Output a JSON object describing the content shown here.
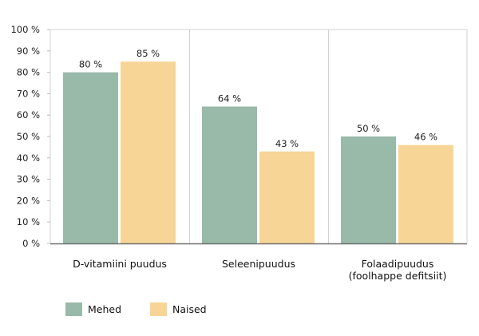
{
  "chart_data": {
    "type": "bar",
    "categories": [
      [
        "D-vitamiini puudus"
      ],
      [
        "Seleenipuudus"
      ],
      [
        "Folaadipuudus",
        "(foolhappe defitsiit)"
      ]
    ],
    "series": [
      {
        "name": "Mehed",
        "values": [
          80,
          64,
          50
        ],
        "color": "#99b9a9",
        "labels": [
          "80 %",
          "64 %",
          "50 %"
        ]
      },
      {
        "name": "Naised",
        "values": [
          85,
          43,
          46
        ],
        "color": "#f6d596",
        "labels": [
          "85 %",
          "43 %",
          "46 %"
        ]
      }
    ],
    "ylim": [
      0,
      100
    ],
    "yticks": [
      "0 %",
      "10 %",
      "20 %",
      "30 %",
      "40 %",
      "50 %",
      "60 %",
      "70 %",
      "80 %",
      "90 %",
      "100 %"
    ],
    "grid": "vertical separators between categories",
    "legend": "bottom-left"
  }
}
